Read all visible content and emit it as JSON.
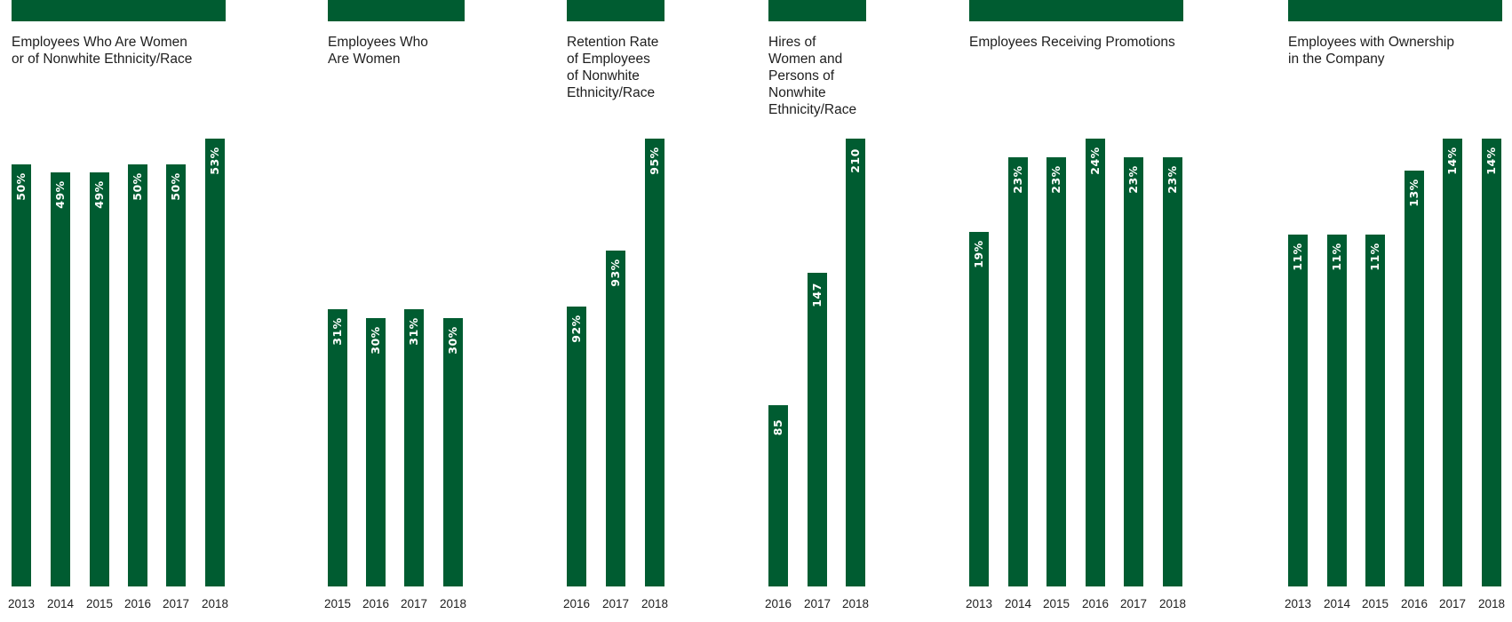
{
  "colors": {
    "bar": "#005c31",
    "label": "#ffffff",
    "text": "#1e1e1e"
  },
  "chart_data": [
    {
      "type": "bar",
      "title": "Employees Who Are Women\nor of Nonwhite Ethnicity/Race",
      "categories": [
        "2013",
        "2014",
        "2015",
        "2016",
        "2017",
        "2018"
      ],
      "values": [
        50,
        49,
        49,
        50,
        50,
        53
      ],
      "labels": [
        "50%",
        "49%",
        "49%",
        "50%",
        "50%",
        "53%"
      ],
      "ylim": [
        0,
        53
      ]
    },
    {
      "type": "bar",
      "title": "Employees Who\nAre Women",
      "categories": [
        "2015",
        "2016",
        "2017",
        "2018"
      ],
      "values": [
        31,
        30,
        31,
        30
      ],
      "labels": [
        "31%",
        "30%",
        "31%",
        "30%"
      ],
      "ylim": [
        0,
        50
      ]
    },
    {
      "type": "bar",
      "title": "Retention Rate\nof Employees\nof Nonwhite\nEthnicity/Race",
      "categories": [
        "2016",
        "2017",
        "2018"
      ],
      "values": [
        92,
        93,
        95
      ],
      "labels": [
        "92%",
        "93%",
        "95%"
      ],
      "ylim": [
        87,
        95
      ]
    },
    {
      "type": "bar",
      "title": "Hires of\nWomen and\nPersons of\nNonwhite\nEthnicity/Race",
      "categories": [
        "2016",
        "2017",
        "2018"
      ],
      "values": [
        85,
        147,
        210
      ],
      "labels": [
        "85",
        "147",
        "210"
      ],
      "ylim": [
        0,
        210
      ]
    },
    {
      "type": "bar",
      "title": "Employees Receiving Promotions",
      "categories": [
        "2013",
        "2014",
        "2015",
        "2016",
        "2017",
        "2018"
      ],
      "values": [
        19,
        23,
        23,
        24,
        23,
        23
      ],
      "labels": [
        "19%",
        "23%",
        "23%",
        "24%",
        "23%",
        "23%"
      ],
      "ylim": [
        0,
        24
      ]
    },
    {
      "type": "bar",
      "title": "Employees with Ownership\nin the Company",
      "categories": [
        "2013",
        "2014",
        "2015",
        "2016",
        "2017",
        "2018"
      ],
      "values": [
        11,
        11,
        11,
        13,
        14,
        14
      ],
      "labels": [
        "11%",
        "11%",
        "11%",
        "13%",
        "14%",
        "14%"
      ],
      "ylim": [
        0,
        14
      ]
    }
  ]
}
